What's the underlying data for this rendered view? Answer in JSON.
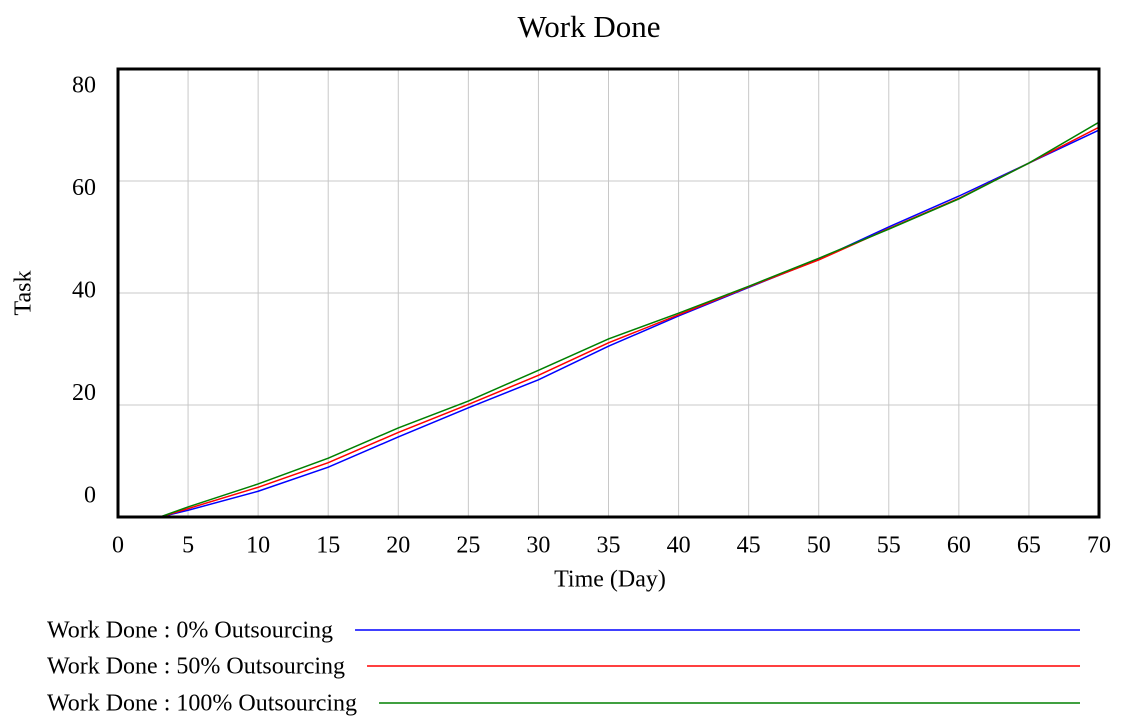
{
  "chart_data": {
    "type": "line",
    "title": "Work Done",
    "x_label": "Time (Day)",
    "y_label": "Task",
    "x": [
      0,
      3,
      5,
      10,
      15,
      20,
      25,
      30,
      35,
      40,
      45,
      50,
      55,
      60,
      65,
      70
    ],
    "series": [
      {
        "name": "Work Done : 0% Outsourcing",
        "color": "#0000ff",
        "values": [
          0,
          0,
          1.2,
          4.6,
          8.9,
          14.3,
          19.5,
          24.5,
          30.5,
          35.9,
          41,
          46,
          51.8,
          57.3,
          63.2,
          69.1
        ]
      },
      {
        "name": "Work Done : 50% Outsourcing",
        "color": "#ff0000",
        "values": [
          0,
          0,
          1.5,
          5.3,
          9.7,
          15.1,
          20.1,
          25.3,
          31.1,
          36.1,
          41.1,
          45.9,
          51.5,
          56.9,
          63.2,
          69.6
        ]
      },
      {
        "name": "Work Done : 100% Outsourcing",
        "color": "#008000",
        "values": [
          0,
          0,
          1.8,
          5.9,
          10.5,
          15.9,
          20.7,
          26.2,
          31.8,
          36.4,
          41.2,
          46.2,
          51.4,
          56.8,
          63.2,
          70.5
        ]
      }
    ],
    "xlim": [
      0,
      70
    ],
    "xticks": [
      0,
      5,
      10,
      15,
      20,
      25,
      30,
      35,
      40,
      45,
      50,
      55,
      60,
      65,
      70
    ],
    "ylim": [
      0,
      80
    ],
    "yticks": [
      0,
      20,
      40,
      60,
      80
    ],
    "grid": true
  }
}
